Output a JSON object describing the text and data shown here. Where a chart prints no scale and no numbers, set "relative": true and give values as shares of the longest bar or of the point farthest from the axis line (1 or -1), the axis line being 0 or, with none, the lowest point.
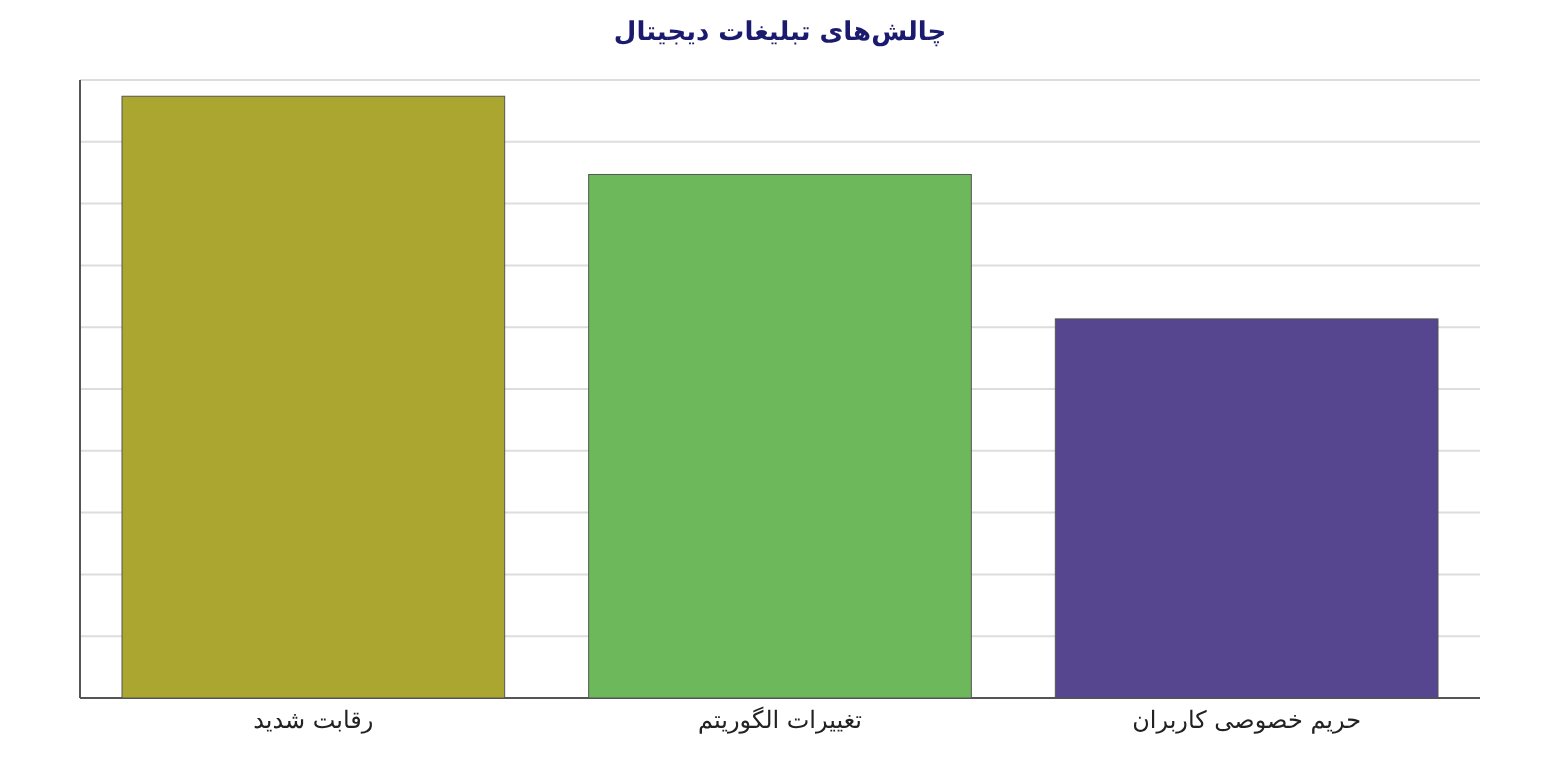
{
  "chart_data": {
    "type": "bar",
    "title": "چالش‌های تبلیغات دیجیتال",
    "categories": [
      "رقابت شدید",
      "تغییرات الگوریتم",
      "حریم خصوصی کاربران"
    ],
    "values": [
      1,
      0.87,
      0.63
    ],
    "colors": [
      "#aba630",
      "#6cb85a",
      "#56458f"
    ],
    "relative": true,
    "grid": "y"
  }
}
